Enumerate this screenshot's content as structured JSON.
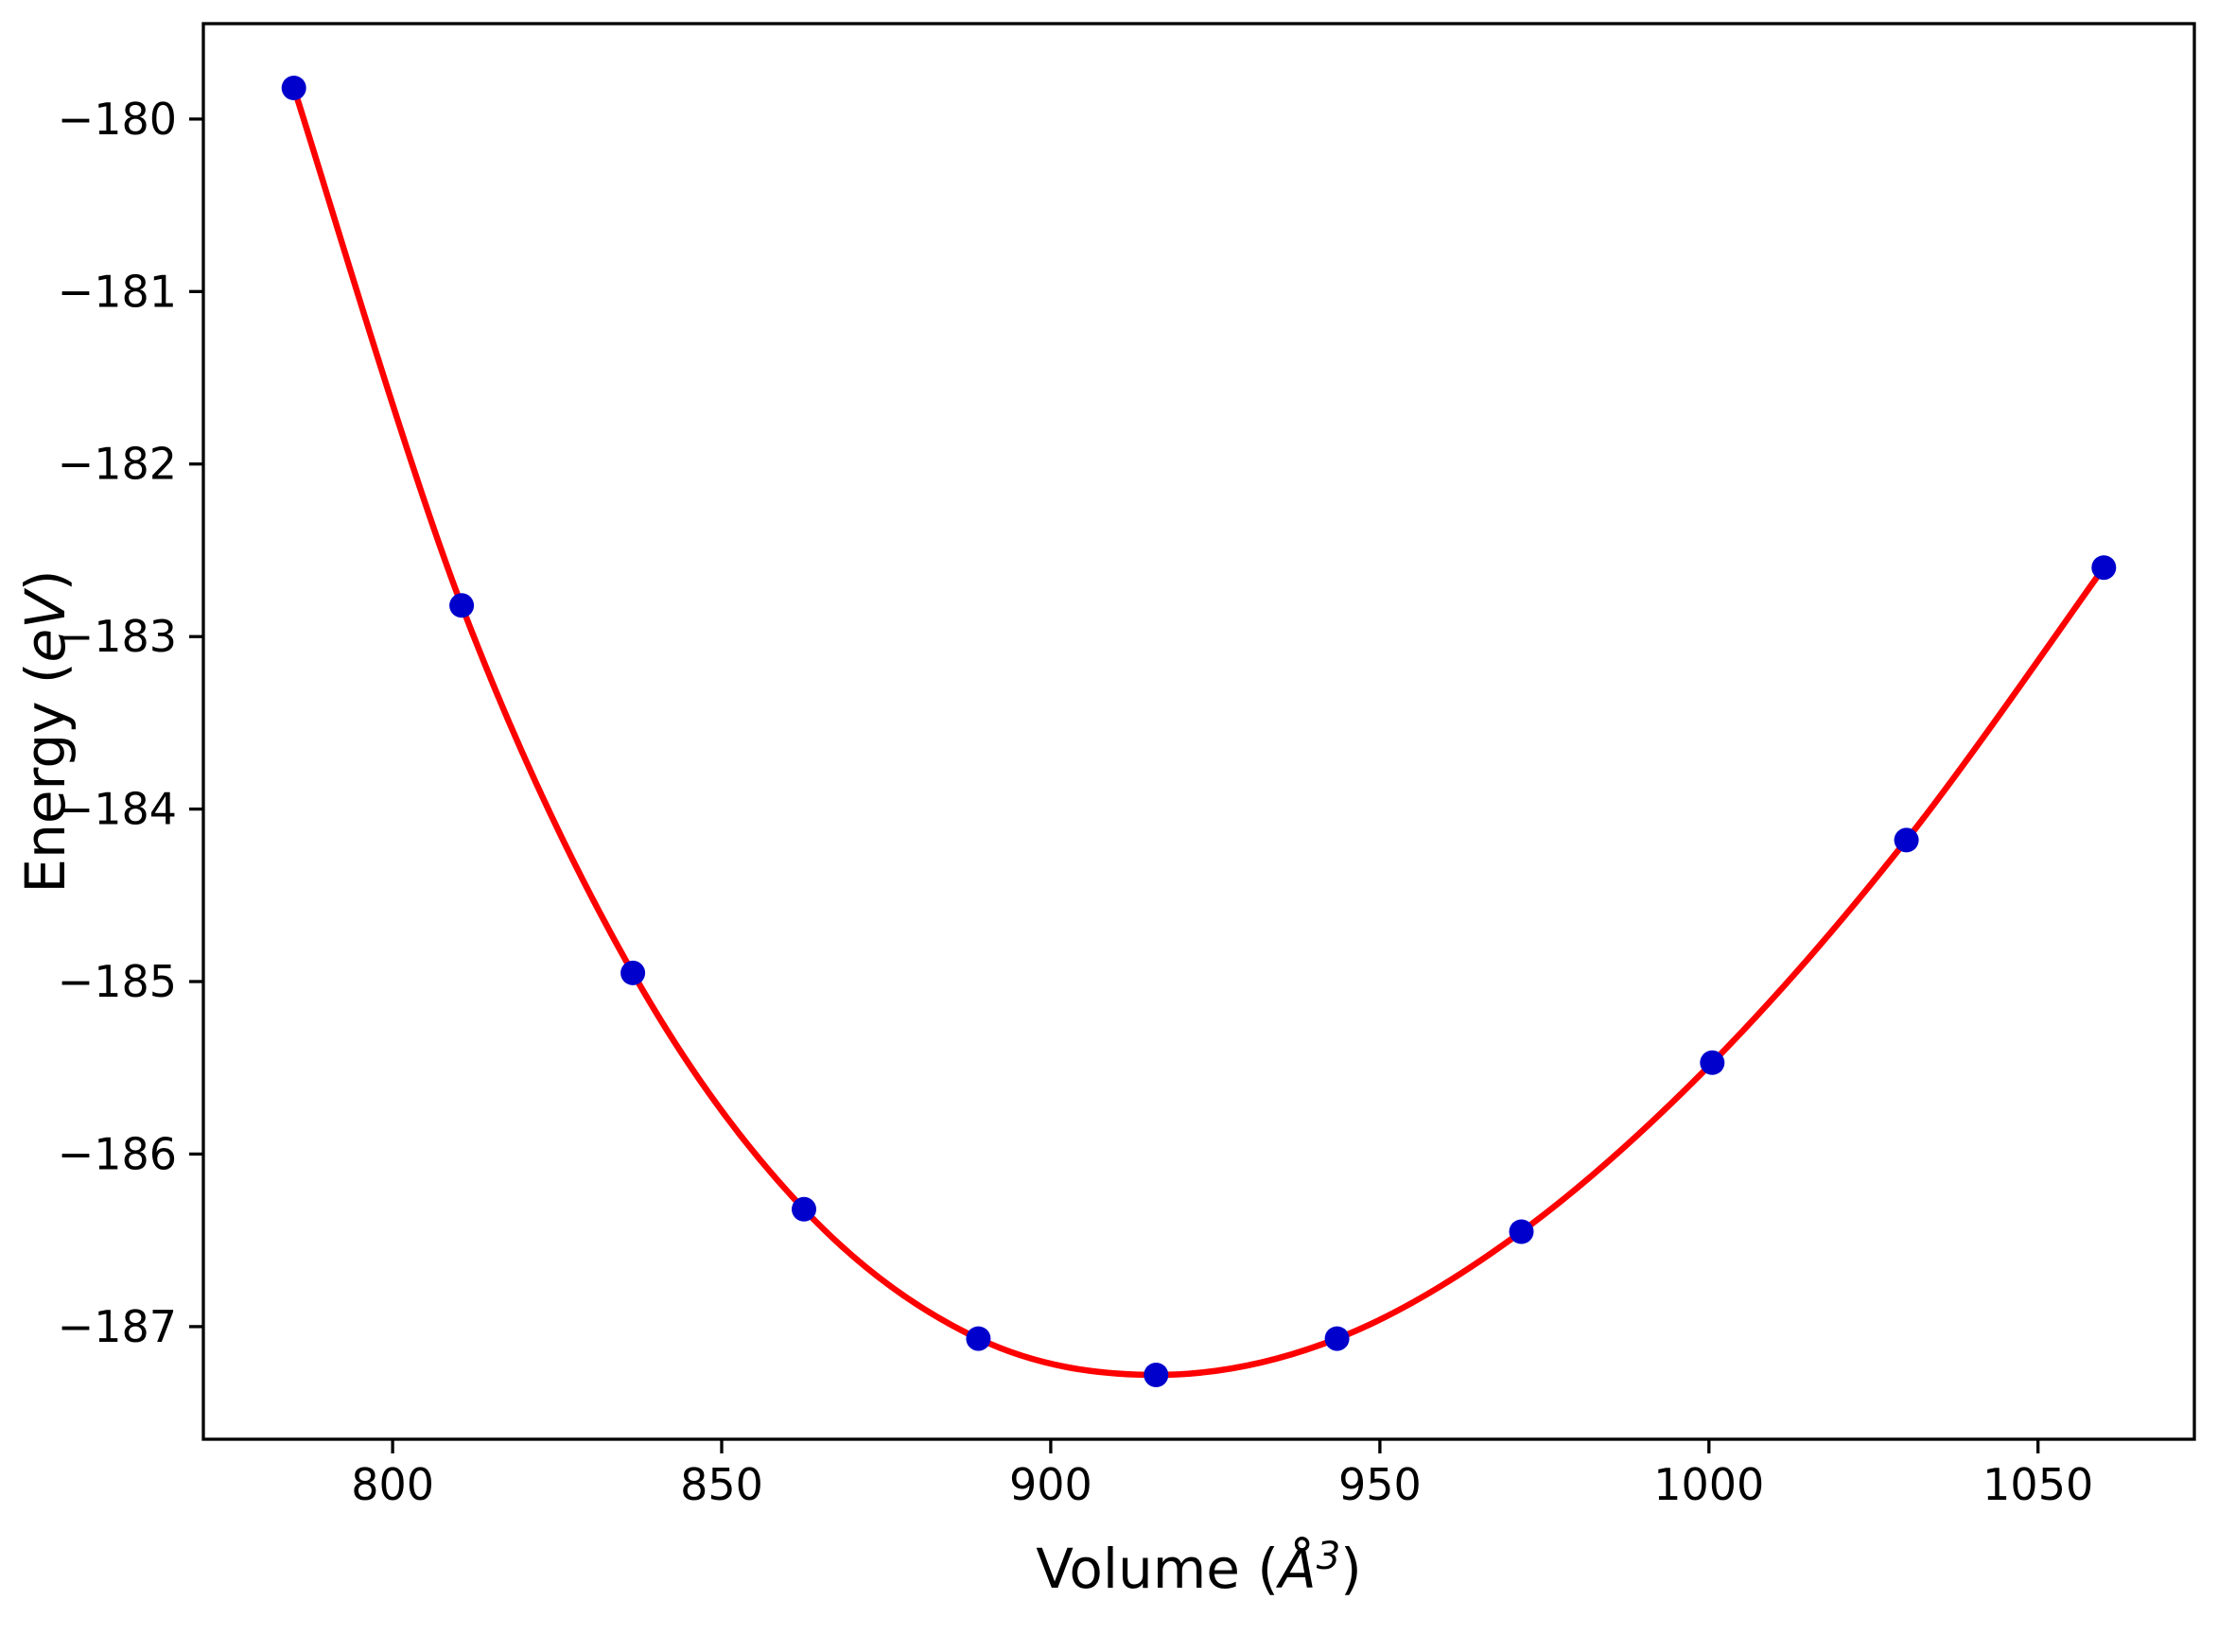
{
  "chart_data": {
    "type": "scatter",
    "title": "",
    "xlabel": "Volume (Å³)",
    "ylabel": "Energy (eV)",
    "xlabel_parts": {
      "prefix": "Volume (",
      "symbol": "Å",
      "sup": "3",
      "suffix": ")"
    },
    "ylabel_parts": {
      "prefix": "Energy (",
      "symbol": "eV",
      "suffix": ")"
    },
    "x": [
      785,
      810.5,
      836.5,
      862.5,
      889,
      916,
      943.5,
      971.5,
      1000.5,
      1030,
      1060
    ],
    "y": [
      -179.82,
      -182.82,
      -184.95,
      -186.32,
      -187.07,
      -187.28,
      -187.07,
      -186.45,
      -185.47,
      -184.18,
      -182.6
    ],
    "fit_series_name": "fitted-equation-of-state-curve",
    "points_series_name": "calculated-energies",
    "xlim": [
      771.25,
      1073.75
    ],
    "ylim": [
      -187.653,
      -179.447
    ],
    "xticks": [
      800,
      850,
      900,
      950,
      1000,
      1050
    ],
    "yticks": [
      -180,
      -181,
      -182,
      -183,
      -184,
      -185,
      -186,
      -187
    ],
    "grid": false,
    "legend": null,
    "colors": {
      "point_color": "#0000cd",
      "line_color": "#ff0000",
      "axis_color": "#000000",
      "background": "#ffffff"
    }
  }
}
